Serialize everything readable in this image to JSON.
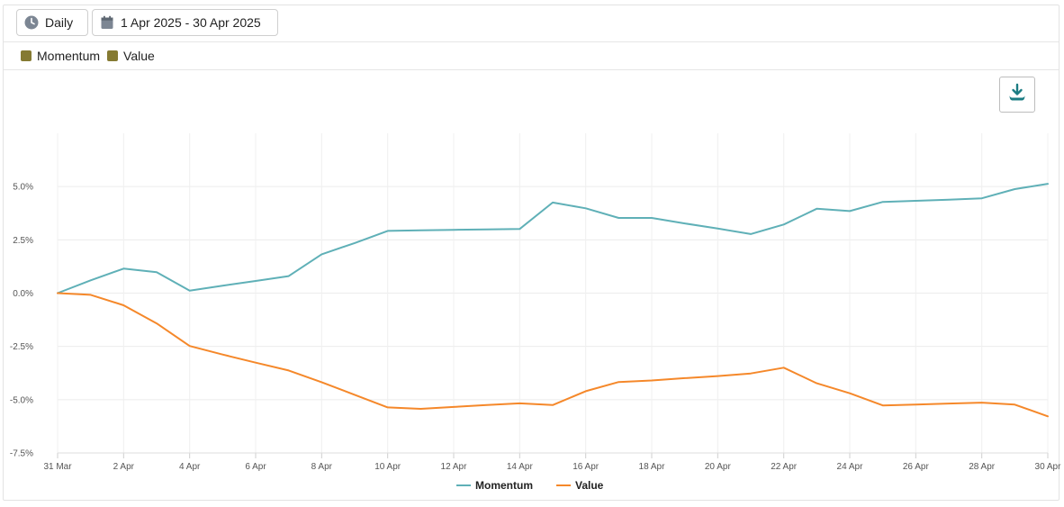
{
  "toolbar": {
    "period_label": "Daily",
    "date_range_label": "1 Apr 2025 - 30 Apr 2025",
    "period_icon": "clock-icon",
    "date_icon": "calendar-icon",
    "download_icon": "download-icon"
  },
  "legend_bar": {
    "items": [
      {
        "label": "Momentum",
        "color": "#857a32"
      },
      {
        "label": "Value",
        "color": "#857a32"
      }
    ]
  },
  "chart_data": {
    "type": "line",
    "x": [
      "31 Mar",
      "1 Apr",
      "2 Apr",
      "3 Apr",
      "4 Apr",
      "5 Apr",
      "6 Apr",
      "7 Apr",
      "8 Apr",
      "9 Apr",
      "10 Apr",
      "11 Apr",
      "12 Apr",
      "13 Apr",
      "14 Apr",
      "15 Apr",
      "16 Apr",
      "17 Apr",
      "18 Apr",
      "19 Apr",
      "20 Apr",
      "21 Apr",
      "22 Apr",
      "23 Apr",
      "24 Apr",
      "25 Apr",
      "26 Apr",
      "27 Apr",
      "28 Apr",
      "29 Apr",
      "30 Apr"
    ],
    "x_tick_labels": [
      "31 Mar",
      "2 Apr",
      "4 Apr",
      "6 Apr",
      "8 Apr",
      "10 Apr",
      "12 Apr",
      "14 Apr",
      "16 Apr",
      "18 Apr",
      "20 Apr",
      "22 Apr",
      "24 Apr",
      "26 Apr",
      "28 Apr",
      "30 Apr"
    ],
    "y_ticks": [
      5.0,
      2.5,
      0.0,
      -2.5,
      -5.0,
      -7.5
    ],
    "y_tick_labels": [
      "5.0%",
      "2.5%",
      "0.0%",
      "-2.5%",
      "-5.0%",
      "-7.5%"
    ],
    "ylim": [
      -7.5,
      7.5
    ],
    "grid": true,
    "legend_position": "bottom",
    "series": [
      {
        "name": "Momentum",
        "color": "#5fb0b7",
        "values": [
          0.0,
          0.6,
          1.15,
          0.98,
          0.12,
          0.35,
          0.57,
          0.8,
          1.82,
          2.35,
          2.92,
          2.95,
          2.97,
          2.99,
          3.01,
          4.25,
          3.98,
          3.53,
          3.53,
          3.27,
          3.03,
          2.77,
          3.22,
          3.96,
          3.85,
          4.28,
          4.33,
          4.38,
          4.45,
          4.88,
          5.13
        ]
      },
      {
        "name": "Value",
        "color": "#f5882a",
        "values": [
          0.0,
          -0.08,
          -0.57,
          -1.42,
          -2.48,
          -2.88,
          -3.26,
          -3.63,
          -4.18,
          -4.77,
          -5.36,
          -5.43,
          -5.34,
          -5.25,
          -5.17,
          -5.25,
          -4.6,
          -4.17,
          -4.1,
          -3.99,
          -3.89,
          -3.77,
          -3.5,
          -4.23,
          -4.7,
          -5.27,
          -5.23,
          -5.18,
          -5.14,
          -5.23,
          -5.78
        ]
      }
    ]
  }
}
